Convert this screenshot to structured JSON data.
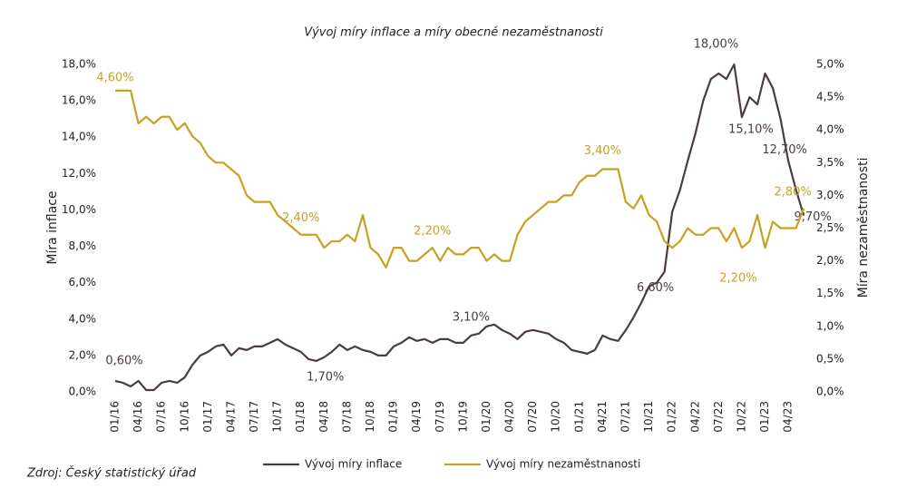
{
  "chart_data": {
    "type": "line",
    "title": "Vývoj míry inflace a míry obecné nezaměstnanosti",
    "source": "Zdroj: Český statistický úřad",
    "ylabel": "Míra inflace",
    "y2label": "Míra nezaměstnanosti",
    "categories": [
      "01/16",
      null,
      null,
      "04/16",
      null,
      null,
      "07/16",
      null,
      null,
      "10/16",
      null,
      null,
      "01/17",
      null,
      null,
      "04/17",
      null,
      null,
      "07/17",
      null,
      null,
      "10/17",
      null,
      null,
      "01/18",
      null,
      null,
      "04/18",
      null,
      null,
      "07/18",
      null,
      null,
      "10/18",
      null,
      null,
      "01/19",
      null,
      null,
      "04/19",
      null,
      null,
      "07/19",
      null,
      null,
      "10/19",
      null,
      null,
      "01/20",
      null,
      null,
      "04/20",
      null,
      null,
      "07/20",
      null,
      null,
      "10/20",
      null,
      null,
      "01/21",
      null,
      null,
      "04/21",
      null,
      null,
      "07/21",
      null,
      null,
      "10/21",
      null,
      null,
      "01/22",
      null,
      null,
      "04/22",
      null,
      null,
      "07/22",
      null,
      null,
      "10/22",
      null,
      null,
      "01/23",
      null,
      null,
      "04/23",
      null,
      null
    ],
    "series": [
      {
        "name": "Vývoj míry inflace",
        "color": "#4b3c42",
        "axis": "y",
        "values": [
          0.6,
          0.5,
          0.3,
          0.6,
          0.1,
          0.1,
          0.5,
          0.6,
          0.5,
          0.8,
          1.5,
          2.0,
          2.2,
          2.5,
          2.6,
          2.0,
          2.4,
          2.3,
          2.5,
          2.5,
          2.7,
          2.9,
          2.6,
          2.4,
          2.2,
          1.8,
          1.7,
          1.9,
          2.2,
          2.6,
          2.3,
          2.5,
          2.3,
          2.2,
          2.0,
          2.0,
          2.5,
          2.7,
          3.0,
          2.8,
          2.9,
          2.7,
          2.9,
          2.9,
          2.7,
          2.7,
          3.1,
          3.2,
          3.6,
          3.7,
          3.4,
          3.2,
          2.9,
          3.3,
          3.4,
          3.3,
          3.2,
          2.9,
          2.7,
          2.3,
          2.2,
          2.1,
          2.3,
          3.1,
          2.9,
          2.8,
          3.4,
          4.1,
          4.9,
          5.8,
          6.0,
          6.6,
          9.9,
          11.1,
          12.7,
          14.2,
          16.0,
          17.2,
          17.5,
          17.2,
          18.0,
          15.1,
          16.2,
          15.8,
          17.5,
          16.7,
          15.0,
          12.7,
          11.1,
          9.7
        ],
        "value_labels": [
          "0,60%",
          null,
          null,
          null,
          null,
          null,
          null,
          null,
          null,
          null,
          null,
          null,
          null,
          null,
          null,
          null,
          null,
          null,
          null,
          null,
          null,
          null,
          null,
          null,
          null,
          null,
          "1,70%",
          null,
          null,
          null,
          null,
          null,
          null,
          null,
          null,
          null,
          null,
          null,
          null,
          null,
          null,
          null,
          null,
          null,
          null,
          null,
          "3,10%",
          null,
          null,
          null,
          null,
          null,
          null,
          null,
          null,
          null,
          null,
          null,
          null,
          null,
          null,
          null,
          null,
          null,
          null,
          null,
          null,
          null,
          null,
          null,
          null,
          "6,60%",
          null,
          null,
          null,
          null,
          null,
          null,
          null,
          null,
          "18,00%",
          "15,10%",
          null,
          null,
          null,
          null,
          null,
          "12,70%",
          null,
          "9,70%"
        ]
      },
      {
        "name": "Vývoj míry nezaměstnanosti",
        "color": "#c9a020",
        "axis": "y2",
        "values": [
          4.6,
          4.6,
          4.6,
          4.1,
          4.2,
          4.1,
          4.2,
          4.2,
          4.0,
          4.1,
          3.9,
          3.8,
          3.6,
          3.5,
          3.5,
          3.4,
          3.3,
          3.0,
          2.9,
          2.9,
          2.9,
          2.7,
          2.6,
          2.5,
          2.4,
          2.4,
          2.4,
          2.2,
          2.3,
          2.3,
          2.4,
          2.3,
          2.7,
          2.2,
          2.1,
          1.9,
          2.2,
          2.2,
          2.0,
          2.0,
          2.1,
          2.2,
          2.0,
          2.2,
          2.1,
          2.1,
          2.2,
          2.2,
          2.0,
          2.1,
          2.0,
          2.0,
          2.4,
          2.6,
          2.7,
          2.8,
          2.9,
          2.9,
          3.0,
          3.0,
          3.2,
          3.3,
          3.3,
          3.4,
          3.4,
          3.4,
          2.9,
          2.8,
          3.0,
          2.7,
          2.6,
          2.3,
          2.2,
          2.3,
          2.5,
          2.4,
          2.4,
          2.5,
          2.5,
          2.3,
          2.5,
          2.2,
          2.3,
          2.7,
          2.2,
          2.6,
          2.5,
          2.5,
          2.5,
          2.8
        ],
        "value_labels": [
          "4,60%",
          null,
          null,
          null,
          null,
          null,
          null,
          null,
          null,
          null,
          null,
          null,
          null,
          null,
          null,
          null,
          null,
          null,
          null,
          null,
          null,
          null,
          null,
          null,
          "2,40%",
          null,
          null,
          null,
          null,
          null,
          null,
          null,
          null,
          null,
          null,
          null,
          null,
          null,
          null,
          null,
          null,
          "2,20%",
          null,
          null,
          null,
          null,
          null,
          null,
          null,
          null,
          null,
          null,
          null,
          null,
          null,
          null,
          null,
          null,
          null,
          null,
          null,
          null,
          null,
          "3,40%",
          null,
          null,
          null,
          null,
          null,
          null,
          null,
          null,
          null,
          null,
          null,
          null,
          null,
          null,
          null,
          null,
          null,
          "2,20%",
          null,
          null,
          null,
          null,
          null,
          null,
          null,
          "2,80%"
        ]
      }
    ],
    "ylim": [
      0,
      18
    ],
    "yticks": [
      {
        "value": 0,
        "label": "0,0%"
      },
      {
        "value": 2,
        "label": "2,0%"
      },
      {
        "value": 4,
        "label": "4,0%"
      },
      {
        "value": 6,
        "label": "6,0%"
      },
      {
        "value": 8,
        "label": "8,0%"
      },
      {
        "value": 10,
        "label": "10,0%"
      },
      {
        "value": 12,
        "label": "12,0%"
      },
      {
        "value": 14,
        "label": "14,0%"
      },
      {
        "value": 16,
        "label": "16,0%"
      },
      {
        "value": 18,
        "label": "18,0%"
      }
    ],
    "y2lim": [
      0,
      5
    ],
    "y2ticks": [
      {
        "value": 0,
        "label": "0,0%"
      },
      {
        "value": 0.5,
        "label": "0,5%"
      },
      {
        "value": 1,
        "label": "1,0%"
      },
      {
        "value": 1.5,
        "label": "1,5%"
      },
      {
        "value": 2,
        "label": "2,0%"
      },
      {
        "value": 2.5,
        "label": "2,5%"
      },
      {
        "value": 3,
        "label": "3,0%"
      },
      {
        "value": 3.5,
        "label": "3,5%"
      },
      {
        "value": 4,
        "label": "4,0%"
      },
      {
        "value": 4.5,
        "label": "4,5%"
      },
      {
        "value": 5,
        "label": "5,0%"
      }
    ]
  }
}
